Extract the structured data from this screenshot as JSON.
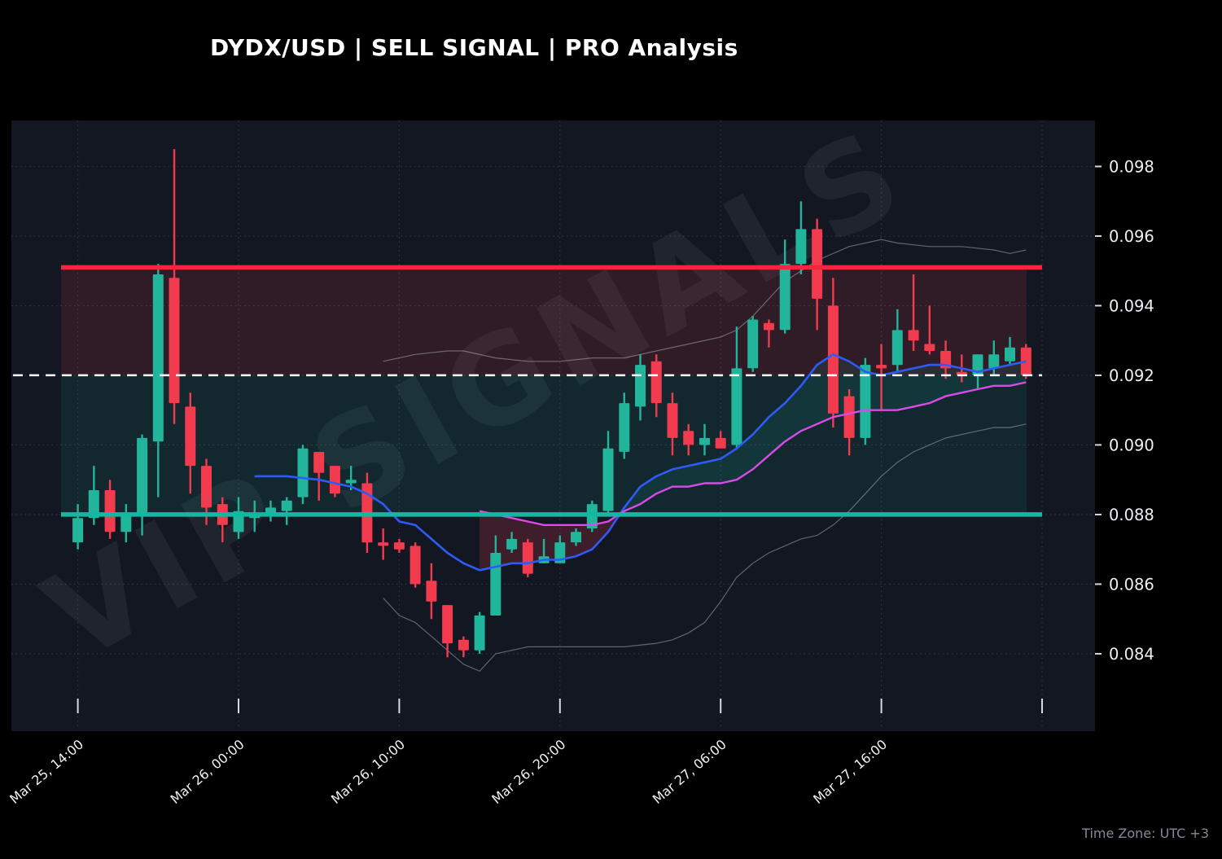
{
  "header": {
    "title": "DYDX/USD | SELL SIGNAL | PRO Analysis"
  },
  "watermark": {
    "text": "VIP SIGNALS"
  },
  "footer": {
    "timezone_note": "Time Zone: UTC +3"
  },
  "colors": {
    "page_bg": "#000000",
    "plot_bg": "#131722",
    "candle_up": "#21b69c",
    "candle_down": "#f23b4e",
    "stop_line": "#f5253d",
    "target_line": "#12b9a2",
    "entry_line": "#ffffff",
    "fast_ma": "#2e5bf7",
    "slow_ma": "#d94ae8",
    "band": "rgba(190,196,208,0.45)",
    "grid": "rgba(165,175,195,0.22)",
    "tick": "#d7dae0",
    "axis_text": "#eef0f4",
    "zone_red": "rgba(242,59,78,0.13)",
    "zone_teal": "rgba(16,185,165,0.10)",
    "cloud_bear": "rgba(242,59,78,0.20)",
    "cloud_bull": "rgba(16,185,165,0.10)",
    "watermark": "rgba(200,206,216,0.07)"
  },
  "chart_data": {
    "type": "candlestick",
    "title": "DYDX/USD | SELL SIGNAL | PRO Analysis",
    "pair": "DYDX/USD",
    "signal": "SELL SIGNAL",
    "interval_hours": 1,
    "ylim": [
      0.08217,
      0.09932
    ],
    "grid": true,
    "y_ticks": [
      {
        "value": 0.084,
        "label": "0.084"
      },
      {
        "value": 0.086,
        "label": "0.086"
      },
      {
        "value": 0.088,
        "label": "0.088"
      },
      {
        "value": 0.09,
        "label": "0.090"
      },
      {
        "value": 0.092,
        "label": "0.092"
      },
      {
        "value": 0.094,
        "label": "0.094"
      },
      {
        "value": 0.096,
        "label": "0.096"
      },
      {
        "value": 0.098,
        "label": "0.098"
      }
    ],
    "x_ticks": [
      {
        "bar": 0,
        "label": "Mar 25, 14:00"
      },
      {
        "bar": 10,
        "label": "Mar 26, 00:00"
      },
      {
        "bar": 20,
        "label": "Mar 26, 10:00"
      },
      {
        "bar": 30,
        "label": "Mar 26, 20:00"
      },
      {
        "bar": 40,
        "label": "Mar 27, 06:00"
      },
      {
        "bar": 50,
        "label": "Mar 27, 16:00"
      },
      {
        "bar": 60,
        "label": ""
      }
    ],
    "ohlc_format": [
      "open",
      "high",
      "low",
      "close"
    ],
    "candles": [
      [
        0.0872,
        0.0883,
        0.087,
        0.0879
      ],
      [
        0.0879,
        0.0894,
        0.0877,
        0.0887
      ],
      [
        0.0887,
        0.089,
        0.0873,
        0.0875
      ],
      [
        0.0875,
        0.0883,
        0.0872,
        0.088
      ],
      [
        0.088,
        0.0903,
        0.0874,
        0.0902
      ],
      [
        0.0901,
        0.0952,
        0.0885,
        0.0949
      ],
      [
        0.0948,
        0.0985,
        0.0906,
        0.0912
      ],
      [
        0.0911,
        0.0915,
        0.0886,
        0.0894
      ],
      [
        0.0894,
        0.0896,
        0.0877,
        0.0882
      ],
      [
        0.0883,
        0.0885,
        0.0872,
        0.0877
      ],
      [
        0.0875,
        0.0885,
        0.0873,
        0.0881
      ],
      [
        0.0879,
        0.0884,
        0.0875,
        0.088
      ],
      [
        0.088,
        0.0884,
        0.0878,
        0.0882
      ],
      [
        0.0881,
        0.0885,
        0.0877,
        0.0884
      ],
      [
        0.0885,
        0.09,
        0.0883,
        0.0899
      ],
      [
        0.0898,
        0.0898,
        0.0884,
        0.0892
      ],
      [
        0.0894,
        0.0894,
        0.0885,
        0.0886
      ],
      [
        0.0889,
        0.0894,
        0.0887,
        0.089
      ],
      [
        0.0889,
        0.0892,
        0.0869,
        0.0872
      ],
      [
        0.0872,
        0.0876,
        0.0867,
        0.0871
      ],
      [
        0.0872,
        0.0873,
        0.0869,
        0.087
      ],
      [
        0.0871,
        0.0872,
        0.0859,
        0.086
      ],
      [
        0.0861,
        0.0866,
        0.085,
        0.0855
      ],
      [
        0.0854,
        0.0854,
        0.0839,
        0.0843
      ],
      [
        0.0844,
        0.0845,
        0.0839,
        0.0841
      ],
      [
        0.0841,
        0.0852,
        0.084,
        0.0851
      ],
      [
        0.0851,
        0.0874,
        0.0851,
        0.0869
      ],
      [
        0.087,
        0.0875,
        0.0869,
        0.0873
      ],
      [
        0.0872,
        0.0873,
        0.0862,
        0.0863
      ],
      [
        0.0866,
        0.0873,
        0.0866,
        0.0868
      ],
      [
        0.0866,
        0.0874,
        0.0866,
        0.0872
      ],
      [
        0.0872,
        0.0876,
        0.0871,
        0.0875
      ],
      [
        0.0876,
        0.0884,
        0.0875,
        0.0883
      ],
      [
        0.0881,
        0.0904,
        0.088,
        0.0899
      ],
      [
        0.0898,
        0.0915,
        0.0896,
        0.0912
      ],
      [
        0.0911,
        0.0926,
        0.0907,
        0.0923
      ],
      [
        0.0924,
        0.0926,
        0.0908,
        0.0912
      ],
      [
        0.0912,
        0.0915,
        0.0897,
        0.0902
      ],
      [
        0.0904,
        0.0906,
        0.0897,
        0.09
      ],
      [
        0.09,
        0.0906,
        0.0897,
        0.0902
      ],
      [
        0.0902,
        0.0904,
        0.0899,
        0.0899
      ],
      [
        0.09,
        0.0934,
        0.0899,
        0.0922
      ],
      [
        0.0922,
        0.0937,
        0.0921,
        0.0936
      ],
      [
        0.0935,
        0.0936,
        0.0928,
        0.0933
      ],
      [
        0.0933,
        0.0959,
        0.0932,
        0.0952
      ],
      [
        0.0952,
        0.097,
        0.0949,
        0.0962
      ],
      [
        0.0962,
        0.0965,
        0.0933,
        0.0942
      ],
      [
        0.094,
        0.0948,
        0.0905,
        0.0909
      ],
      [
        0.0914,
        0.0916,
        0.0897,
        0.0902
      ],
      [
        0.0902,
        0.0925,
        0.09,
        0.0923
      ],
      [
        0.0923,
        0.0929,
        0.091,
        0.0922
      ],
      [
        0.0923,
        0.0939,
        0.0921,
        0.0933
      ],
      [
        0.0933,
        0.0949,
        0.0927,
        0.093
      ],
      [
        0.0929,
        0.094,
        0.0926,
        0.0927
      ],
      [
        0.0927,
        0.093,
        0.0919,
        0.0922
      ],
      [
        0.0921,
        0.0926,
        0.0918,
        0.092
      ],
      [
        0.092,
        0.0926,
        0.0916,
        0.0926
      ],
      [
        0.0922,
        0.093,
        0.092,
        0.0926
      ],
      [
        0.0924,
        0.0931,
        0.0923,
        0.0928
      ],
      [
        0.0928,
        0.0929,
        0.0919,
        0.092
      ]
    ],
    "levels": {
      "stop_loss": {
        "price": 0.0951,
        "style": "solid",
        "color_key": "stop_line"
      },
      "entry": {
        "price": 0.092,
        "style": "dashed",
        "color_key": "entry_line"
      },
      "take_profit": {
        "price": 0.088,
        "style": "solid",
        "color_key": "target_line"
      }
    },
    "zones": [
      {
        "from": 0.0951,
        "to": 0.092,
        "color_key": "zone_red"
      },
      {
        "from": 0.092,
        "to": 0.088,
        "color_key": "zone_teal"
      }
    ],
    "overlays": {
      "fast_ma": {
        "color_key": "fast_ma",
        "points": [
          [
            11,
            0.0891
          ],
          [
            13,
            0.0891
          ],
          [
            15,
            0.089
          ],
          [
            16,
            0.0889
          ],
          [
            17,
            0.0888
          ],
          [
            18,
            0.0886
          ],
          [
            19,
            0.0883
          ],
          [
            20,
            0.0878
          ],
          [
            21,
            0.0877
          ],
          [
            22,
            0.0873
          ],
          [
            23,
            0.0869
          ],
          [
            24,
            0.0866
          ],
          [
            25,
            0.0864
          ],
          [
            26,
            0.0865
          ],
          [
            27,
            0.0866
          ],
          [
            28,
            0.0866
          ],
          [
            29,
            0.0867
          ],
          [
            30,
            0.0867
          ],
          [
            31,
            0.0868
          ],
          [
            32,
            0.087
          ],
          [
            33,
            0.0875
          ],
          [
            34,
            0.0882
          ],
          [
            35,
            0.0888
          ],
          [
            36,
            0.0891
          ],
          [
            37,
            0.0893
          ],
          [
            38,
            0.0894
          ],
          [
            39,
            0.0895
          ],
          [
            40,
            0.0896
          ],
          [
            41,
            0.0899
          ],
          [
            42,
            0.0903
          ],
          [
            43,
            0.0908
          ],
          [
            44,
            0.0912
          ],
          [
            45,
            0.0917
          ],
          [
            46,
            0.0923
          ],
          [
            47,
            0.0926
          ],
          [
            48,
            0.0924
          ],
          [
            49,
            0.0921
          ],
          [
            50,
            0.092
          ],
          [
            51,
            0.0921
          ],
          [
            52,
            0.0922
          ],
          [
            53,
            0.0923
          ],
          [
            54,
            0.0923
          ],
          [
            55,
            0.0922
          ],
          [
            56,
            0.0921
          ],
          [
            57,
            0.0922
          ],
          [
            58,
            0.0923
          ],
          [
            59,
            0.0924
          ]
        ]
      },
      "slow_ma": {
        "color_key": "slow_ma",
        "points": [
          [
            25,
            0.0881
          ],
          [
            26,
            0.088
          ],
          [
            27,
            0.0879
          ],
          [
            28,
            0.0878
          ],
          [
            29,
            0.0877
          ],
          [
            30,
            0.0877
          ],
          [
            31,
            0.0877
          ],
          [
            32,
            0.0877
          ],
          [
            33,
            0.0878
          ],
          [
            34,
            0.0881
          ],
          [
            35,
            0.0883
          ],
          [
            36,
            0.0886
          ],
          [
            37,
            0.0888
          ],
          [
            38,
            0.0888
          ],
          [
            39,
            0.0889
          ],
          [
            40,
            0.0889
          ],
          [
            41,
            0.089
          ],
          [
            42,
            0.0893
          ],
          [
            43,
            0.0897
          ],
          [
            44,
            0.0901
          ],
          [
            45,
            0.0904
          ],
          [
            46,
            0.0906
          ],
          [
            47,
            0.0908
          ],
          [
            48,
            0.0909
          ],
          [
            49,
            0.091
          ],
          [
            50,
            0.091
          ],
          [
            51,
            0.091
          ],
          [
            52,
            0.0911
          ],
          [
            53,
            0.0912
          ],
          [
            54,
            0.0914
          ],
          [
            55,
            0.0915
          ],
          [
            56,
            0.0916
          ],
          [
            57,
            0.0917
          ],
          [
            58,
            0.0917
          ],
          [
            59,
            0.0918
          ]
        ]
      },
      "band_upper": {
        "color_key": "band",
        "points": [
          [
            19,
            0.0924
          ],
          [
            21,
            0.0926
          ],
          [
            23,
            0.0927
          ],
          [
            24,
            0.0927
          ],
          [
            26,
            0.0925
          ],
          [
            28,
            0.0924
          ],
          [
            30,
            0.0924
          ],
          [
            32,
            0.0925
          ],
          [
            34,
            0.0925
          ],
          [
            36,
            0.0927
          ],
          [
            38,
            0.0929
          ],
          [
            40,
            0.0931
          ],
          [
            41,
            0.0933
          ],
          [
            42,
            0.0937
          ],
          [
            43,
            0.0942
          ],
          [
            44,
            0.0947
          ],
          [
            45,
            0.095
          ],
          [
            46,
            0.0953
          ],
          [
            47,
            0.0955
          ],
          [
            48,
            0.0957
          ],
          [
            49,
            0.0958
          ],
          [
            50,
            0.0959
          ],
          [
            51,
            0.0958
          ],
          [
            53,
            0.0957
          ],
          [
            55,
            0.0957
          ],
          [
            57,
            0.0956
          ],
          [
            58,
            0.0955
          ],
          [
            59,
            0.0956
          ]
        ]
      },
      "band_lower": {
        "color_key": "band",
        "points": [
          [
            19,
            0.0856
          ],
          [
            20,
            0.0851
          ],
          [
            21,
            0.0849
          ],
          [
            22,
            0.0845
          ],
          [
            23,
            0.0841
          ],
          [
            24,
            0.0837
          ],
          [
            25,
            0.0835
          ],
          [
            26,
            0.084
          ],
          [
            27,
            0.0841
          ],
          [
            28,
            0.0842
          ],
          [
            30,
            0.0842
          ],
          [
            32,
            0.0842
          ],
          [
            34,
            0.0842
          ],
          [
            36,
            0.0843
          ],
          [
            37,
            0.0844
          ],
          [
            38,
            0.0846
          ],
          [
            39,
            0.0849
          ],
          [
            40,
            0.0855
          ],
          [
            41,
            0.0862
          ],
          [
            42,
            0.0866
          ],
          [
            43,
            0.0869
          ],
          [
            44,
            0.0871
          ],
          [
            45,
            0.0873
          ],
          [
            46,
            0.0874
          ],
          [
            47,
            0.0877
          ],
          [
            48,
            0.0881
          ],
          [
            49,
            0.0886
          ],
          [
            50,
            0.0891
          ],
          [
            51,
            0.0895
          ],
          [
            52,
            0.0898
          ],
          [
            53,
            0.09
          ],
          [
            54,
            0.0902
          ],
          [
            55,
            0.0903
          ],
          [
            56,
            0.0904
          ],
          [
            57,
            0.0905
          ],
          [
            58,
            0.0905
          ],
          [
            59,
            0.0906
          ]
        ]
      },
      "ma_cloud": {
        "bear_range": [
          25,
          34
        ],
        "bull_range": [
          34,
          59
        ]
      }
    }
  }
}
